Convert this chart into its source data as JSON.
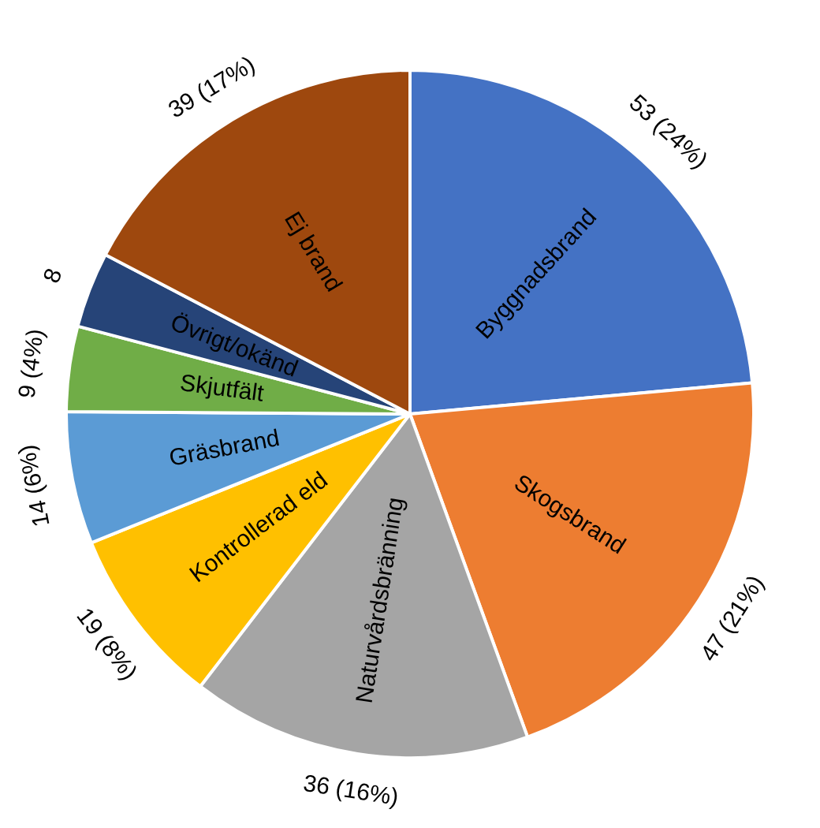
{
  "chart_data": {
    "type": "pie",
    "categories": [
      "Byggnadsbrand",
      "Skogsbrand",
      "Naturvårdsbränning",
      "Kontrollerad eld",
      "Gräsbrand",
      "Skjutfält",
      "Övrigt/okänd",
      "Ej brand"
    ],
    "values": [
      53,
      47,
      36,
      19,
      14,
      9,
      8,
      39
    ],
    "colors": [
      "#4472c4",
      "#ed7d31",
      "#a5a5a5",
      "#ffc000",
      "#5b9bd5",
      "#70ad47",
      "#264478",
      "#9e480e"
    ],
    "value_labels": [
      "53 (24%)",
      "47 (21%)",
      "36 (16%)",
      "19 (8%)",
      "14 (6%)",
      "9 (4%)",
      "8",
      "39 (17%)"
    ],
    "legend": false
  }
}
